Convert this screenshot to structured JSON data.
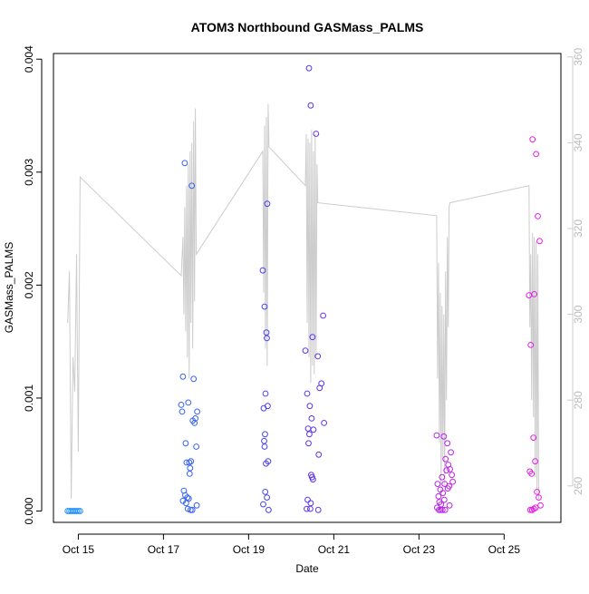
{
  "chart_data": {
    "type": "scatter",
    "title": "ATOM3 Northbound GASMass_PALMS",
    "xlabel": "Date",
    "ylabel": "GASMass_PALMS",
    "x_type": "date",
    "x_ticks": [
      {
        "value": "2017-10-15",
        "label": "Oct 15"
      },
      {
        "value": "2017-10-17",
        "label": "Oct 17"
      },
      {
        "value": "2017-10-19",
        "label": "Oct 19"
      },
      {
        "value": "2017-10-21",
        "label": "Oct 21"
      },
      {
        "value": "2017-10-23",
        "label": "Oct 23"
      },
      {
        "value": "2017-10-25",
        "label": "Oct 25"
      }
    ],
    "xlim": [
      "2017-10-14T10:00",
      "2017-10-26T08:00"
    ],
    "ylim": [
      -0.0001,
      0.00405
    ],
    "y_ticks": [
      "0.000",
      "0.001",
      "0.002",
      "0.003",
      "0.004"
    ],
    "y2lim": [
      251.5,
      360.8
    ],
    "y2_ticks": [
      "260",
      "280",
      "300",
      "320",
      "340",
      "360"
    ],
    "grid": false,
    "line_color": "#cccccc",
    "point_colors": {
      "early": "#1e90ff",
      "mid": "#4f38ee",
      "late": "#e61ee6"
    },
    "series": [
      {
        "kind": "points",
        "axis": "left",
        "points": [
          [
            "2017-10-14T18:00",
            0.0
          ],
          [
            "2017-10-14T19:00",
            0.0
          ],
          [
            "2017-10-14T20:00",
            0.0
          ],
          [
            "2017-10-14T21:00",
            0.0
          ],
          [
            "2017-10-14T22:00",
            0.0
          ],
          [
            "2017-10-14T23:00",
            0.0
          ],
          [
            "2017-10-15T00:00",
            0.0
          ],
          [
            "2017-10-15T01:00",
            0.0
          ],
          [
            "2017-10-17T12:00",
            0.00308
          ],
          [
            "2017-10-17T16:00",
            0.00288
          ],
          [
            "2017-10-17T11:00",
            0.00119
          ],
          [
            "2017-10-17T17:00",
            0.00117
          ],
          [
            "2017-10-17T10:00",
            0.00094
          ],
          [
            "2017-10-17T14:00",
            0.00096
          ],
          [
            "2017-10-17T10:30",
            0.00088
          ],
          [
            "2017-10-17T19:00",
            0.00088
          ],
          [
            "2017-10-17T18:00",
            0.00082
          ],
          [
            "2017-10-17T17:30",
            0.00078
          ],
          [
            "2017-10-17T16:30",
            0.0008
          ],
          [
            "2017-10-17T12:30",
            0.0006
          ],
          [
            "2017-10-17T18:30",
            0.00057
          ],
          [
            "2017-10-17T13:00",
            0.00043
          ],
          [
            "2017-10-17T14:30",
            0.00043
          ],
          [
            "2017-10-17T15:30",
            0.00044
          ],
          [
            "2017-10-17T15:00",
            0.00038
          ],
          [
            "2017-10-17T14:45",
            0.00033
          ],
          [
            "2017-10-17T11:30",
            0.00018
          ],
          [
            "2017-10-17T12:15",
            0.00014
          ],
          [
            "2017-10-17T13:30",
            0.00012
          ],
          [
            "2017-10-17T11:00",
            9e-05
          ],
          [
            "2017-10-17T14:15",
            0.00011
          ],
          [
            "2017-10-17T12:45",
            7e-05
          ],
          [
            "2017-10-17T18:45",
            5e-05
          ],
          [
            "2017-10-17T13:45",
            2e-05
          ],
          [
            "2017-10-17T15:15",
            1e-05
          ],
          [
            "2017-10-17T16:15",
            1e-05
          ],
          [
            "2017-10-19T08:00",
            0.00213
          ],
          [
            "2017-10-19T10:30",
            0.00272
          ],
          [
            "2017-10-19T09:00",
            0.00181
          ],
          [
            "2017-10-19T10:00",
            0.00158
          ],
          [
            "2017-10-19T10:15",
            0.00153
          ],
          [
            "2017-10-19T09:30",
            0.00104
          ],
          [
            "2017-10-19T10:45",
            0.00093
          ],
          [
            "2017-10-19T08:30",
            0.00091
          ],
          [
            "2017-10-19T09:15",
            0.00068
          ],
          [
            "2017-10-19T08:45",
            0.00062
          ],
          [
            "2017-10-19T09:00",
            0.00057
          ],
          [
            "2017-10-19T11:00",
            0.00044
          ],
          [
            "2017-10-19T09:45",
            0.00042
          ],
          [
            "2017-10-19T09:20",
            0.00017
          ],
          [
            "2017-10-19T10:20",
            0.00012
          ],
          [
            "2017-10-19T08:15",
            6e-05
          ],
          [
            "2017-10-19T11:15",
            1e-05
          ],
          [
            "2017-10-20T10:00",
            0.00392
          ],
          [
            "2017-10-20T11:00",
            0.00359
          ],
          [
            "2017-10-20T14:00",
            0.00334
          ],
          [
            "2017-10-20T18:00",
            0.00173
          ],
          [
            "2017-10-20T12:00",
            0.00154
          ],
          [
            "2017-10-20T08:00",
            0.00142
          ],
          [
            "2017-10-20T15:00",
            0.00137
          ],
          [
            "2017-10-20T17:00",
            0.00113
          ],
          [
            "2017-10-20T16:00",
            0.00109
          ],
          [
            "2017-10-20T09:00",
            0.00104
          ],
          [
            "2017-10-20T10:30",
            0.00093
          ],
          [
            "2017-10-20T11:30",
            0.00082
          ],
          [
            "2017-10-20T18:30",
            0.00078
          ],
          [
            "2017-10-20T09:30",
            0.00073
          ],
          [
            "2017-10-20T12:30",
            0.00072
          ],
          [
            "2017-10-20T10:15",
            0.00068
          ],
          [
            "2017-10-20T09:45",
            0.0006
          ],
          [
            "2017-10-20T15:30",
            0.0005
          ],
          [
            "2017-10-20T11:15",
            0.00032
          ],
          [
            "2017-10-20T11:45",
            0.0003
          ],
          [
            "2017-10-20T12:15",
            0.00028
          ],
          [
            "2017-10-20T09:15",
            0.0001
          ],
          [
            "2017-10-20T11:00",
            7e-05
          ],
          [
            "2017-10-20T10:45",
            2e-05
          ],
          [
            "2017-10-20T15:15",
            1e-05
          ],
          [
            "2017-10-20T08:45",
            2e-05
          ],
          [
            "2017-10-23T10:00",
            0.00067
          ],
          [
            "2017-10-23T14:00",
            0.00066
          ],
          [
            "2017-10-23T16:00",
            0.0006
          ],
          [
            "2017-10-23T18:00",
            0.00052
          ],
          [
            "2017-10-23T15:00",
            0.00046
          ],
          [
            "2017-10-23T16:30",
            0.00041
          ],
          [
            "2017-10-23T17:30",
            0.00037
          ],
          [
            "2017-10-23T15:30",
            0.00036
          ],
          [
            "2017-10-23T18:30",
            0.00032
          ],
          [
            "2017-10-23T13:00",
            0.0003
          ],
          [
            "2017-10-23T19:00",
            0.00026
          ],
          [
            "2017-10-23T14:30",
            0.00024
          ],
          [
            "2017-10-23T10:30",
            0.00024
          ],
          [
            "2017-10-23T17:00",
            0.00022
          ],
          [
            "2017-10-23T16:15",
            0.0002
          ],
          [
            "2017-10-23T12:00",
            0.00019
          ],
          [
            "2017-10-23T13:30",
            0.00016
          ],
          [
            "2017-10-23T11:00",
            0.00013
          ],
          [
            "2017-10-23T14:15",
            0.0001
          ],
          [
            "2017-10-23T11:30",
            8e-05
          ],
          [
            "2017-10-23T12:30",
            6e-05
          ],
          [
            "2017-10-23T17:15",
            5e-05
          ],
          [
            "2017-10-23T10:15",
            3e-05
          ],
          [
            "2017-10-23T11:15",
            1e-05
          ],
          [
            "2017-10-23T12:15",
            1e-05
          ],
          [
            "2017-10-23T13:15",
            1e-05
          ],
          [
            "2017-10-23T14:45",
            1e-05
          ],
          [
            "2017-10-25T16:00",
            0.00329
          ],
          [
            "2017-10-25T18:00",
            0.00316
          ],
          [
            "2017-10-25T19:00",
            0.00261
          ],
          [
            "2017-10-25T20:00",
            0.00239
          ],
          [
            "2017-10-25T14:00",
            0.00191
          ],
          [
            "2017-10-25T17:00",
            0.00192
          ],
          [
            "2017-10-25T15:00",
            0.00147
          ],
          [
            "2017-10-25T16:30",
            0.00065
          ],
          [
            "2017-10-25T17:30",
            0.00044
          ],
          [
            "2017-10-25T14:30",
            0.00035
          ],
          [
            "2017-10-25T15:30",
            0.00033
          ],
          [
            "2017-10-25T18:30",
            0.00017
          ],
          [
            "2017-10-25T19:30",
            0.00012
          ],
          [
            "2017-10-25T20:30",
            5e-05
          ],
          [
            "2017-10-25T17:45",
            3e-05
          ],
          [
            "2017-10-25T16:45",
            2e-05
          ],
          [
            "2017-10-25T15:45",
            1e-05
          ],
          [
            "2017-10-25T14:45",
            1e-05
          ]
        ]
      },
      {
        "kind": "line",
        "axis": "right",
        "points": [
          [
            "2017-10-14T18:00",
            298
          ],
          [
            "2017-10-14T19:00",
            310
          ],
          [
            "2017-10-14T20:00",
            257
          ],
          [
            "2017-10-14T21:00",
            290
          ],
          [
            "2017-10-14T22:00",
            282
          ],
          [
            "2017-10-14T23:00",
            314
          ],
          [
            "2017-10-15T00:00",
            268
          ],
          [
            "2017-10-15T01:00",
            332
          ],
          [
            "2017-10-17T10:00",
            309
          ],
          [
            "2017-10-17T11:00",
            318
          ],
          [
            "2017-10-17T11:30",
            300
          ],
          [
            "2017-10-17T12:00",
            325
          ],
          [
            "2017-10-17T12:30",
            296
          ],
          [
            "2017-10-17T13:00",
            330
          ],
          [
            "2017-10-17T13:30",
            290
          ],
          [
            "2017-10-17T14:00",
            335
          ],
          [
            "2017-10-17T14:30",
            285
          ],
          [
            "2017-10-17T15:00",
            338
          ],
          [
            "2017-10-17T15:30",
            298
          ],
          [
            "2017-10-17T16:00",
            340
          ],
          [
            "2017-10-17T16:30",
            292
          ],
          [
            "2017-10-17T17:00",
            345
          ],
          [
            "2017-10-17T17:30",
            303
          ],
          [
            "2017-10-17T18:00",
            348
          ],
          [
            "2017-10-17T18:30",
            314
          ],
          [
            "2017-10-19T08:00",
            338
          ],
          [
            "2017-10-19T08:30",
            305
          ],
          [
            "2017-10-19T09:00",
            344
          ],
          [
            "2017-10-19T09:30",
            292
          ],
          [
            "2017-10-19T10:00",
            346
          ],
          [
            "2017-10-19T10:30",
            288
          ],
          [
            "2017-10-19T11:00",
            349
          ],
          [
            "2017-10-19T11:30",
            339
          ],
          [
            "2017-10-20T08:00",
            330
          ],
          [
            "2017-10-20T08:30",
            342
          ],
          [
            "2017-10-20T09:00",
            298
          ],
          [
            "2017-10-20T09:30",
            341
          ],
          [
            "2017-10-20T10:00",
            290
          ],
          [
            "2017-10-20T10:30",
            340
          ],
          [
            "2017-10-20T11:00",
            284
          ],
          [
            "2017-10-20T11:30",
            343
          ],
          [
            "2017-10-20T12:00",
            288
          ],
          [
            "2017-10-20T12:30",
            338
          ],
          [
            "2017-10-20T13:00",
            286
          ],
          [
            "2017-10-20T13:30",
            342
          ],
          [
            "2017-10-20T14:00",
            290
          ],
          [
            "2017-10-20T14:30",
            335
          ],
          [
            "2017-10-20T15:00",
            326
          ],
          [
            "2017-10-23T10:00",
            323
          ],
          [
            "2017-10-23T10:30",
            285
          ],
          [
            "2017-10-23T11:00",
            312
          ],
          [
            "2017-10-23T11:30",
            270
          ],
          [
            "2017-10-23T12:00",
            305
          ],
          [
            "2017-10-23T12:30",
            258
          ],
          [
            "2017-10-23T13:00",
            302
          ],
          [
            "2017-10-23T13:30",
            266
          ],
          [
            "2017-10-23T14:00",
            300
          ],
          [
            "2017-10-23T14:30",
            260
          ],
          [
            "2017-10-23T15:00",
            310
          ],
          [
            "2017-10-23T15:30",
            280
          ],
          [
            "2017-10-23T16:00",
            318
          ],
          [
            "2017-10-23T16:30",
            297
          ],
          [
            "2017-10-23T17:00",
            325
          ],
          [
            "2017-10-23T17:30",
            326
          ],
          [
            "2017-10-25T14:00",
            330
          ],
          [
            "2017-10-25T14:30",
            297
          ],
          [
            "2017-10-25T15:00",
            314
          ],
          [
            "2017-10-25T15:30",
            280
          ],
          [
            "2017-10-25T16:00",
            319
          ],
          [
            "2017-10-25T16:30",
            276
          ],
          [
            "2017-10-25T17:00",
            318
          ],
          [
            "2017-10-25T17:30",
            262
          ],
          [
            "2017-10-25T18:00",
            317
          ],
          [
            "2017-10-25T18:30",
            258
          ],
          [
            "2017-10-25T19:00",
            314
          ],
          [
            "2017-10-25T19:30",
            257
          ]
        ]
      }
    ]
  }
}
